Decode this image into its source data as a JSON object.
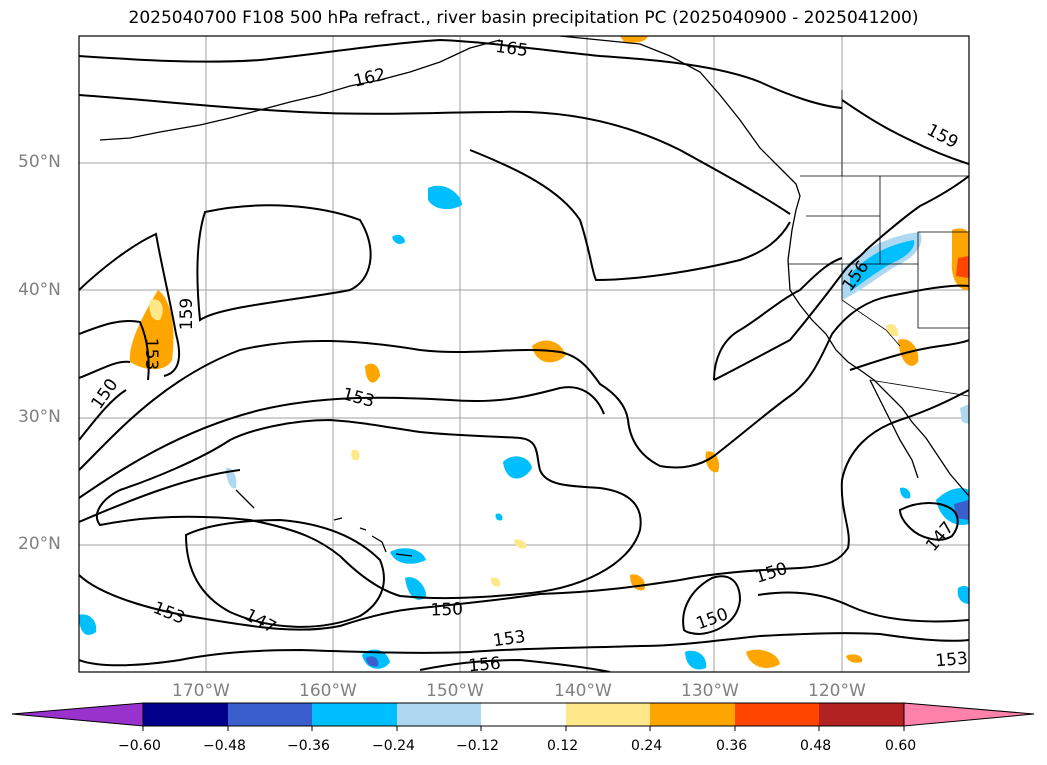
{
  "title": "2025040700 F108 500 hPa refract., river basin precipitation PC (2025040900 - 2025041200)",
  "lat_labels": [
    "50°N",
    "40°N",
    "30°N",
    "20°N"
  ],
  "lon_labels": [
    "170°W",
    "160°W",
    "150°W",
    "140°W",
    "130°W",
    "120°W"
  ],
  "contour_labels": [
    "165",
    "162",
    "159",
    "159",
    "156",
    "153",
    "153",
    "153",
    "153",
    "153",
    "150",
    "150",
    "150",
    "150",
    "150",
    "147",
    "147",
    "156"
  ],
  "colorbar": {
    "tick_labels": [
      "−0.60",
      "−0.48",
      "−0.36",
      "−0.24",
      "−0.12",
      "0.12",
      "0.24",
      "0.36",
      "0.48",
      "0.60"
    ],
    "colors": [
      "#9932cc",
      "#00008b",
      "#3a5fcd",
      "#00bfff",
      "#add8f0",
      "#ffffff",
      "#ffe88a",
      "#ffa500",
      "#ff4500",
      "#b22222",
      "#ff82ab"
    ]
  },
  "colors": {
    "negative_fill": "#00bfff",
    "positive_fill": "#ffa500",
    "contour": "#000000",
    "grid": "#808080"
  }
}
